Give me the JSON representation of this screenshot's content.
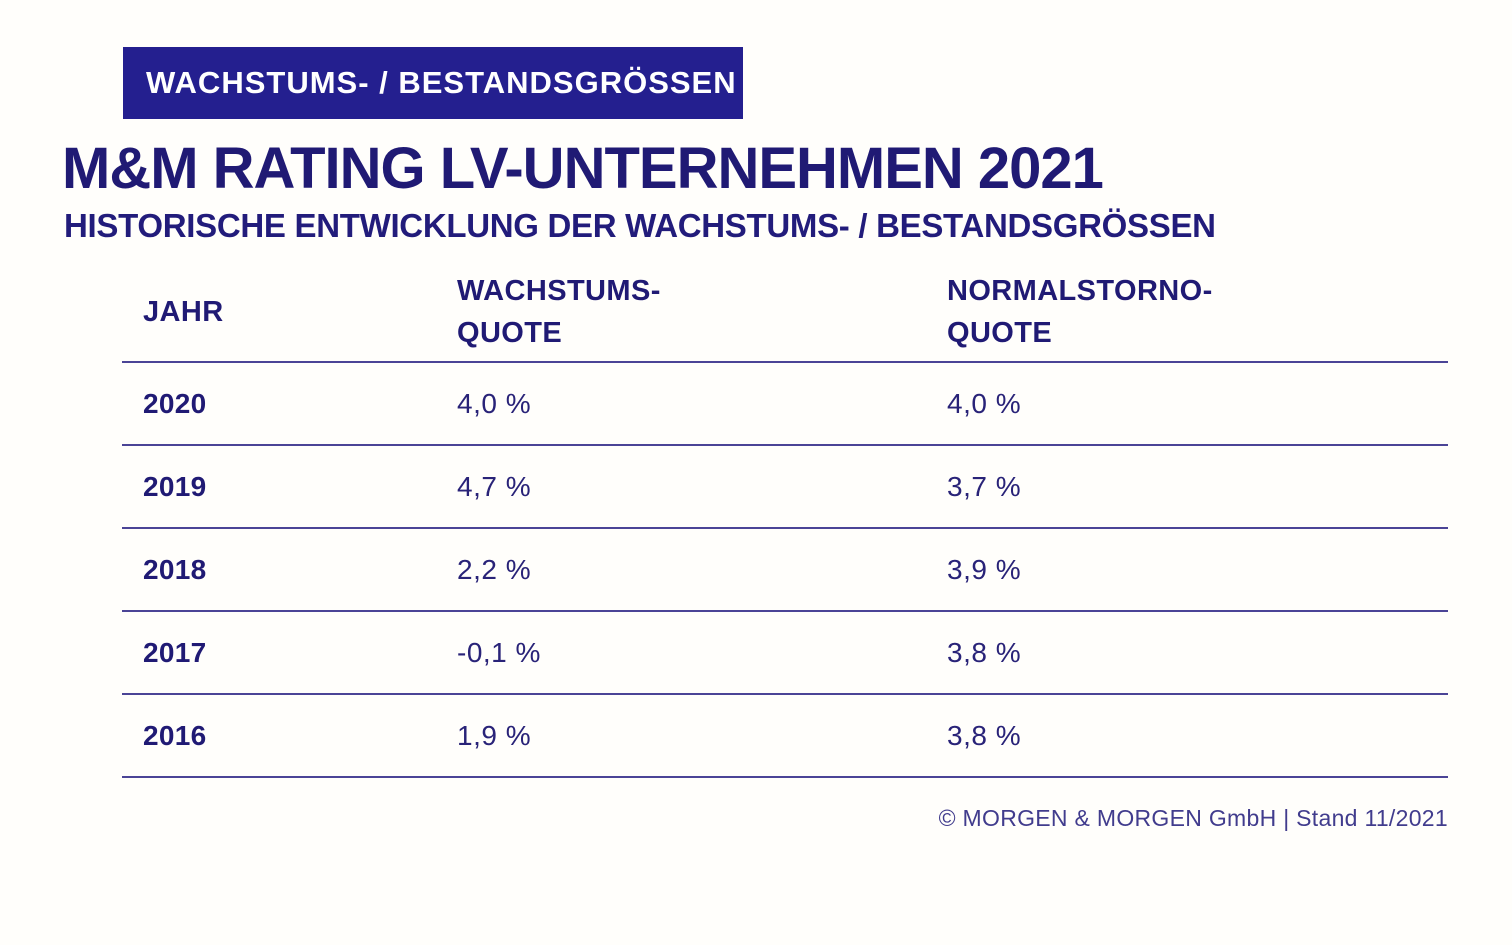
{
  "page": {
    "background": "#fffefb",
    "accent_color": "#241f8f",
    "text_color": "#201a74",
    "line_color": "#4b4496"
  },
  "banner": {
    "label": "WACHSTUMS- / BESTANDSGRÖSSEN"
  },
  "header": {
    "title": "M&M RATING LV-UNTERNEHMEN 2021",
    "subtitle": "HISTORISCHE ENTWICKLUNG DER WACHSTUMS- / BESTANDSGRÖSSEN"
  },
  "table": {
    "columns": [
      {
        "line1": "JAHR",
        "line2": ""
      },
      {
        "line1": "WACHSTUMS-",
        "line2": "QUOTE"
      },
      {
        "line1": "NORMALSTORNO-",
        "line2": "QUOTE"
      }
    ],
    "rows": [
      {
        "year": "2020",
        "wachstumsquote": "4,0 %",
        "normalstornoquote": "4,0 %"
      },
      {
        "year": "2019",
        "wachstumsquote": "4,7 %",
        "normalstornoquote": "3,7 %"
      },
      {
        "year": "2018",
        "wachstumsquote": "2,2 %",
        "normalstornoquote": "3,9 %"
      },
      {
        "year": "2017",
        "wachstumsquote": "-0,1 %",
        "normalstornoquote": "3,8 %"
      },
      {
        "year": "2016",
        "wachstumsquote": "1,9 %",
        "normalstornoquote": "3,8 %"
      }
    ]
  },
  "footer": {
    "copyright": "© MORGEN & MORGEN GmbH | Stand 11/2021"
  },
  "chart_data": {
    "type": "table",
    "title": "M&M RATING LV-UNTERNEHMEN 2021",
    "subtitle": "HISTORISCHE ENTWICKLUNG DER WACHSTUMS- / BESTANDSGRÖSSEN",
    "category_banner": "WACHSTUMS- / BESTANDSGRÖSSEN",
    "columns": [
      "JAHR",
      "WACHSTUMS-QUOTE",
      "NORMALSTORNO-QUOTE"
    ],
    "years": [
      "2020",
      "2019",
      "2018",
      "2017",
      "2016"
    ],
    "series": [
      {
        "name": "WACHSTUMS-QUOTE",
        "unit": "%",
        "values": [
          4.0,
          4.7,
          2.2,
          -0.1,
          1.9
        ]
      },
      {
        "name": "NORMALSTORNO-QUOTE",
        "unit": "%",
        "values": [
          4.0,
          3.7,
          3.9,
          3.8,
          3.8
        ]
      }
    ],
    "source": "© MORGEN & MORGEN GmbH | Stand 11/2021"
  }
}
